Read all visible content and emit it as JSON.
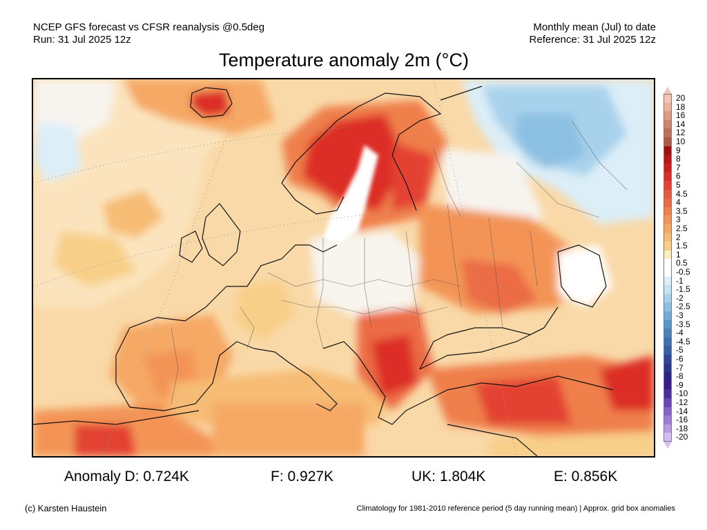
{
  "header": {
    "left_line1": "NCEP GFS forecast vs CFSR reanalysis @0.5deg",
    "left_line2": "Run: 31 Jul 2025 12z",
    "right_line1": "Monthly mean (Jul) to date",
    "right_line2": "Reference: 31 Jul 2025 12z"
  },
  "title": "Temperature anomaly 2m (°C)",
  "colorbar": {
    "labels": [
      "20",
      "18",
      "16",
      "14",
      "12",
      "10",
      "9",
      "8",
      "7",
      "6",
      "5",
      "4.5",
      "4",
      "3.5",
      "3",
      "2.5",
      "2",
      "1.5",
      "1",
      "0.5",
      "-0.5",
      "-1",
      "-1.5",
      "-2",
      "-2.5",
      "-3",
      "-3.5",
      "-4",
      "-4.5",
      "-5",
      "-6",
      "-7",
      "-8",
      "-9",
      "-10",
      "-12",
      "-14",
      "-16",
      "-18",
      "-20"
    ],
    "colors": [
      "#f3c6b4",
      "#ebb29c",
      "#dd9c83",
      "#cf866e",
      "#bf705a",
      "#b05a48",
      "#a01010",
      "#b81818",
      "#cc2020",
      "#dc2e28",
      "#e34332",
      "#e75a3d",
      "#eb6c44",
      "#ef7f4c",
      "#f39456",
      "#f6a965",
      "#f7bc74",
      "#f8cf88",
      "#faeebe",
      "#ffffff",
      "#ffffff",
      "#dceef8",
      "#c3e2f3",
      "#a8d2ec",
      "#8cc0e2",
      "#6fabd6",
      "#5997c8",
      "#4a82b9",
      "#3f6fae",
      "#3a5ea4",
      "#31489a",
      "#2b3690",
      "#282488",
      "#37208a",
      "#4c2f9c",
      "#6a47b6",
      "#8462c7",
      "#9f7dd7",
      "#b99be4",
      "#d4bdf1"
    ]
  },
  "stats": {
    "d": "Anomaly D: 0.724K",
    "f": "F: 0.927K",
    "uk": "UK: 1.804K",
    "e": "E: 0.856K"
  },
  "footer": {
    "credit": "(c) Karsten Haustein",
    "note": "Climatology for 1981-2010 reference period (5 day running mean) | Approx. grid box anomalies"
  }
}
